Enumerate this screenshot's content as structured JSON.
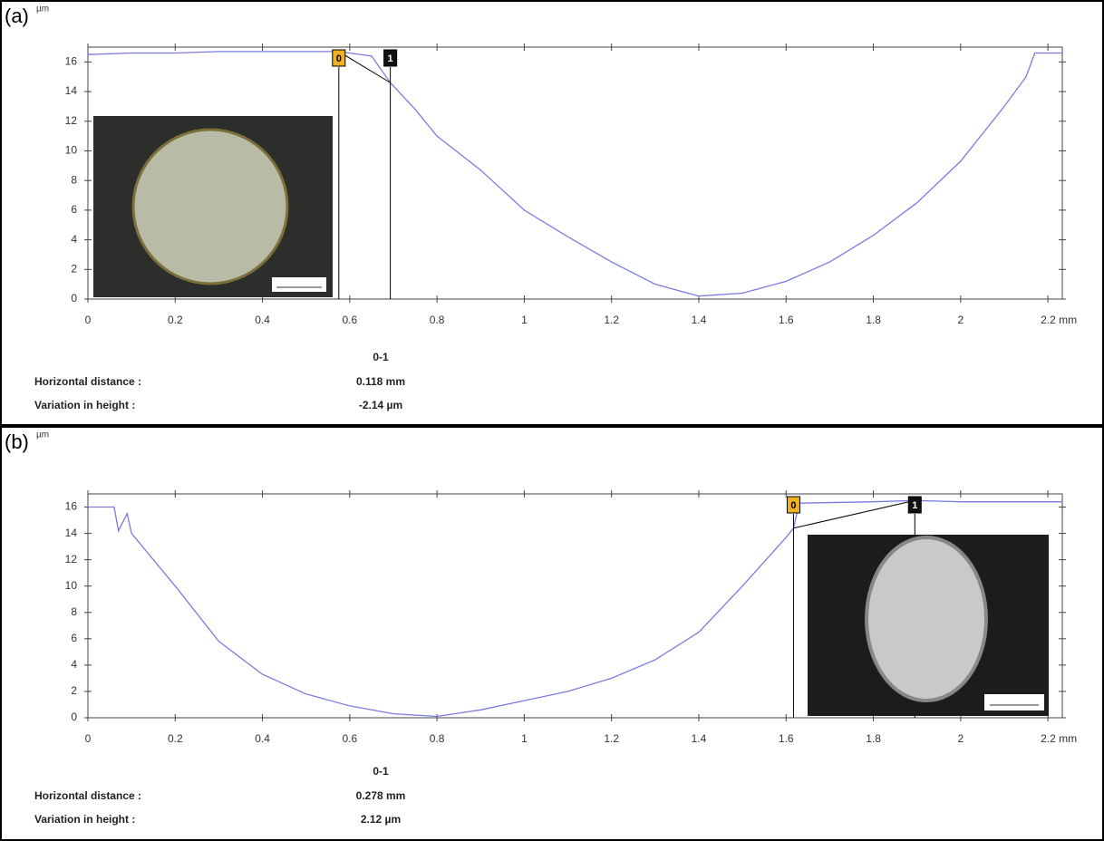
{
  "chart_data": [
    {
      "type": "line",
      "panel_label": "(a)",
      "y_unit": "µm",
      "color": "#7b7be0",
      "xlim": [
        0,
        2.233
      ],
      "ylim": [
        0,
        17
      ],
      "xticks": [
        0,
        0.2,
        0.4,
        0.6,
        0.8,
        1,
        1.2,
        1.4,
        1.6,
        1.8,
        2,
        {
          "value": 2.2,
          "label": "2.2 mm"
        }
      ],
      "yticks": [
        0,
        2,
        4,
        6,
        8,
        10,
        12,
        14,
        16
      ],
      "x": [
        0,
        0.1,
        0.2,
        0.3,
        0.4,
        0.5,
        0.575,
        0.65,
        0.693,
        0.75,
        0.8,
        0.9,
        1.0,
        1.1,
        1.2,
        1.3,
        1.4,
        1.5,
        1.6,
        1.7,
        1.8,
        1.9,
        2.0,
        2.1,
        2.15,
        2.17,
        2.233
      ],
      "values": [
        16.5,
        16.6,
        16.6,
        16.7,
        16.7,
        16.7,
        16.7,
        16.4,
        14.6,
        12.8,
        11.0,
        8.7,
        6.0,
        4.2,
        2.5,
        1.0,
        0.2,
        0.4,
        1.2,
        2.5,
        4.3,
        6.5,
        9.3,
        13.0,
        15.0,
        16.6,
        16.6
      ],
      "markers": [
        {
          "label": "0",
          "x": 0.575,
          "y": 16.7,
          "color": "#f0b020"
        },
        {
          "label": "1",
          "x": 0.693,
          "y": 14.6,
          "color": "#111111"
        }
      ],
      "measurement": {
        "column": "0-1",
        "rows": [
          [
            "Horizontal distance :",
            "0.118 mm"
          ],
          [
            "Variation in height :",
            "-2.14 µm"
          ]
        ]
      }
    },
    {
      "type": "line",
      "panel_label": "(b)",
      "y_unit": "µm",
      "color": "#7b7be0",
      "xlim": [
        0,
        2.233
      ],
      "ylim": [
        0,
        17
      ],
      "xticks": [
        0,
        0.2,
        0.4,
        0.6,
        0.8,
        1,
        1.2,
        1.4,
        1.6,
        1.8,
        2,
        {
          "value": 2.2,
          "label": "2.2 mm"
        }
      ],
      "yticks": [
        0,
        2,
        4,
        6,
        8,
        10,
        12,
        14,
        16
      ],
      "x": [
        0,
        0.06,
        0.07,
        0.09,
        0.1,
        0.2,
        0.3,
        0.4,
        0.5,
        0.6,
        0.7,
        0.8,
        0.9,
        1.0,
        1.1,
        1.2,
        1.3,
        1.4,
        1.5,
        1.6,
        1.617,
        1.63,
        1.8,
        1.895,
        2.0,
        2.233
      ],
      "values": [
        16.0,
        16.0,
        14.2,
        15.5,
        14.0,
        10.0,
        5.8,
        3.3,
        1.8,
        0.9,
        0.3,
        0.1,
        0.6,
        1.3,
        2.0,
        3.0,
        4.4,
        6.5,
        10.0,
        13.7,
        14.4,
        16.3,
        16.4,
        16.5,
        16.4,
        16.4
      ],
      "markers": [
        {
          "label": "0",
          "x": 1.617,
          "y": 14.4,
          "color": "#f0b020"
        },
        {
          "label": "1",
          "x": 1.895,
          "y": 16.5,
          "color": "#111111"
        }
      ],
      "measurement": {
        "column": "0-1",
        "rows": [
          [
            "Horizontal distance :",
            "0.278 mm"
          ],
          [
            "Variation in height :",
            "2.12 µm"
          ]
        ]
      }
    }
  ]
}
